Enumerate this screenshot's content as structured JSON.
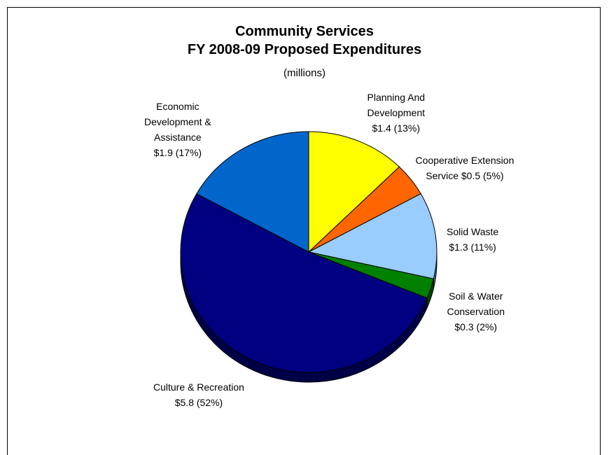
{
  "chart_data": {
    "type": "pie",
    "title_lines": [
      "Community Services",
      "FY 2008-09 Proposed Expenditures"
    ],
    "subtitle": "(millions)",
    "unit": "$ millions",
    "slices": [
      {
        "label": "Planning And Development",
        "value": 1.4,
        "percent": 13,
        "color": "#FFFF00",
        "label_lines": [
          "Planning And",
          "Development",
          "$1.4 (13%)"
        ]
      },
      {
        "label": "Cooperative Extension Service",
        "value": 0.5,
        "percent": 5,
        "color": "#FF6600",
        "label_lines": [
          "Cooperative Extension",
          "Service   $0.5 (5%)"
        ]
      },
      {
        "label": "Solid Waste",
        "value": 1.3,
        "percent": 11,
        "color": "#99CCFF",
        "label_lines": [
          "Solid Waste",
          "$1.3 (11%)"
        ]
      },
      {
        "label": "Soil & Water Conservation",
        "value": 0.3,
        "percent": 2,
        "color": "#008000",
        "label_lines": [
          "Soil & Water",
          "Conservation",
          "$0.3 (2%)"
        ]
      },
      {
        "label": "Culture & Recreation",
        "value": 5.8,
        "percent": 52,
        "color": "#000080",
        "label_lines": [
          "Culture & Recreation",
          "$5.8 (52%)"
        ]
      },
      {
        "label": "Economic Development & Assistance",
        "value": 1.9,
        "percent": 17,
        "color": "#0066CC",
        "label_lines": [
          "Economic",
          "Development &",
          "Assistance",
          "$1.9 (17%)"
        ]
      }
    ],
    "legend": "none"
  }
}
